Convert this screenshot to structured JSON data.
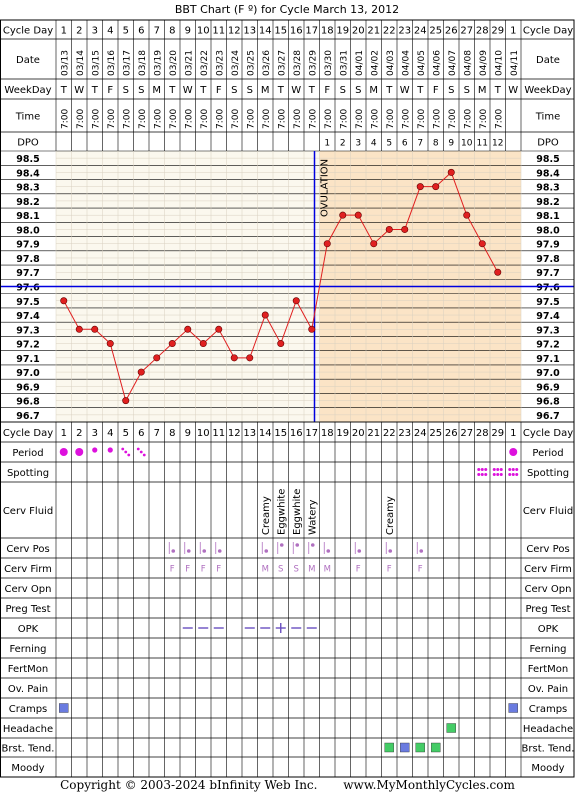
{
  "chart_data": {
    "type": "line",
    "title": "BBT Chart (F º) for Cycle March 13, 2012",
    "cycle_days": [
      "1",
      "2",
      "3",
      "4",
      "5",
      "6",
      "7",
      "8",
      "9",
      "10",
      "11",
      "12",
      "13",
      "14",
      "15",
      "16",
      "17",
      "18",
      "19",
      "20",
      "21",
      "22",
      "23",
      "24",
      "25",
      "26",
      "27",
      "28",
      "29",
      "1"
    ],
    "dates": [
      "03/13",
      "03/14",
      "03/15",
      "03/16",
      "03/17",
      "03/18",
      "03/19",
      "03/20",
      "03/21",
      "03/22",
      "03/23",
      "03/24",
      "03/25",
      "03/26",
      "03/27",
      "03/28",
      "03/29",
      "03/30",
      "03/31",
      "04/01",
      "04/02",
      "04/03",
      "04/04",
      "04/05",
      "04/06",
      "04/07",
      "04/08",
      "04/09",
      "04/10",
      "04/11"
    ],
    "weekdays": [
      "T",
      "W",
      "T",
      "F",
      "S",
      "S",
      "M",
      "T",
      "W",
      "T",
      "F",
      "S",
      "S",
      "M",
      "T",
      "W",
      "T",
      "F",
      "S",
      "S",
      "M",
      "T",
      "W",
      "T",
      "F",
      "S",
      "S",
      "M",
      "T",
      "W"
    ],
    "times": [
      "7:00",
      "7:00",
      "7:00",
      "7:00",
      "7:00",
      "7:00",
      "7:00",
      "7:00",
      "7:00",
      "7:00",
      "7:00",
      "7:00",
      "7:00",
      "7:00",
      "7:00",
      "7:00",
      "7:00",
      "7:00",
      "7:00",
      "7:00",
      "7:00",
      "7:00",
      "7:00",
      "7:00",
      "7:00",
      "7:00",
      "7:00",
      "7:00",
      "7:00",
      ""
    ],
    "dpo": [
      "",
      "",
      "",
      "",
      "",
      "",
      "",
      "",
      "",
      "",
      "",
      "",
      "",
      "",
      "",
      "",
      "",
      "1",
      "2",
      "3",
      "4",
      "5",
      "6",
      "7",
      "8",
      "9",
      "10",
      "11",
      "12",
      ""
    ],
    "temperatures": [
      97.5,
      97.3,
      97.3,
      97.2,
      96.8,
      97.0,
      97.1,
      97.2,
      97.3,
      97.2,
      97.3,
      97.1,
      97.1,
      97.4,
      97.2,
      97.5,
      97.3,
      97.9,
      98.1,
      98.1,
      97.9,
      98.0,
      98.0,
      98.3,
      98.3,
      98.4,
      98.1,
      97.9,
      97.7,
      null
    ],
    "y_ticks": [
      "98.5",
      "98.4",
      "98.3",
      "98.2",
      "98.1",
      "98.0",
      "97.9",
      "97.8",
      "97.7",
      "97.6",
      "97.5",
      "97.4",
      "97.3",
      "97.2",
      "97.1",
      "97.0",
      "96.9",
      "96.8",
      "96.7"
    ],
    "ylim": [
      96.7,
      98.5
    ],
    "coverline": 97.6,
    "ovulation_day_index": 17,
    "ovulation_label": "OVULATION",
    "line_color": "#e02020",
    "coverline_color": "#0000e0",
    "follicular_bg": "#fbf8ee",
    "luteal_bg": "#fbe4c6",
    "row_labels": {
      "cycle_day": "Cycle Day",
      "date": "Date",
      "weekday": "WeekDay",
      "time": "Time",
      "dpo": "DPO",
      "period": "Period",
      "spotting": "Spotting",
      "cerv_fluid": "Cerv Fluid",
      "cerv_pos": "Cerv Pos",
      "cerv_firm": "Cerv Firm",
      "cerv_opn": "Cerv Opn",
      "preg_test": "Preg Test",
      "opk": "OPK",
      "ferning": "Ferning",
      "fertmon": "FertMon",
      "ov_pain": "Ov. Pain",
      "cramps": "Cramps",
      "headache": "Headache",
      "brst_tend": "Brst. Tend.",
      "moody": "Moody"
    },
    "period": [
      3,
      3,
      2,
      2,
      1,
      1,
      0,
      0,
      0,
      0,
      0,
      0,
      0,
      0,
      0,
      0,
      0,
      0,
      0,
      0,
      0,
      0,
      0,
      0,
      0,
      0,
      0,
      0,
      0,
      3
    ],
    "spotting": [
      0,
      0,
      0,
      0,
      0,
      0,
      0,
      0,
      0,
      0,
      0,
      0,
      0,
      0,
      0,
      0,
      0,
      0,
      0,
      0,
      0,
      0,
      0,
      0,
      0,
      0,
      0,
      1,
      1,
      1
    ],
    "cerv_fluid": [
      "",
      "",
      "",
      "",
      "",
      "",
      "",
      "",
      "",
      "",
      "",
      "",
      "",
      "Creamy",
      "Eggwhite",
      "Eggwhite",
      "Watery",
      "",
      "",
      "",
      "",
      "Creamy",
      "",
      "",
      "",
      "",
      "",
      "",
      "",
      ""
    ],
    "cerv_pos": [
      0,
      0,
      0,
      0,
      0,
      0,
      0,
      1,
      1,
      1,
      1,
      0,
      0,
      1,
      2,
      2,
      2,
      1,
      0,
      1,
      0,
      1,
      0,
      1,
      0,
      0,
      0,
      0,
      0,
      0
    ],
    "cerv_firm": [
      "",
      "",
      "",
      "",
      "",
      "",
      "",
      "F",
      "F",
      "F",
      "F",
      "",
      "",
      "M",
      "S",
      "S",
      "M",
      "M",
      "",
      "F",
      "",
      "F",
      "",
      "F",
      "",
      "",
      "",
      "",
      "",
      ""
    ],
    "opk": [
      "",
      "",
      "",
      "",
      "",
      "",
      "",
      "",
      "N",
      "N",
      "N",
      "",
      "N",
      "N",
      "P",
      "N",
      "N",
      "",
      "",
      "",
      "",
      "",
      "",
      "",
      "",
      "",
      "",
      "",
      "",
      ""
    ],
    "cramps": [
      1,
      0,
      0,
      0,
      0,
      0,
      0,
      0,
      0,
      0,
      0,
      0,
      0,
      0,
      0,
      0,
      0,
      0,
      0,
      0,
      0,
      0,
      0,
      0,
      0,
      0,
      0,
      0,
      0,
      1
    ],
    "headache": [
      0,
      0,
      0,
      0,
      0,
      0,
      0,
      0,
      0,
      0,
      0,
      0,
      0,
      0,
      0,
      0,
      0,
      0,
      0,
      0,
      0,
      0,
      0,
      0,
      0,
      1,
      0,
      0,
      0,
      0
    ],
    "brst_tend": [
      0,
      0,
      0,
      0,
      0,
      0,
      0,
      0,
      0,
      0,
      0,
      0,
      0,
      0,
      0,
      0,
      0,
      0,
      0,
      0,
      0,
      1,
      2,
      1,
      1,
      0,
      0,
      0,
      0,
      0
    ],
    "symptom_colors": {
      "cramps": "#6a7be0",
      "headache": "#44cc66",
      "brst_tend_green": "#44cc66",
      "brst_tend_blue": "#6a7be0"
    },
    "period_color": "#dd11dd",
    "cerv_mark_color": "#b070c0"
  },
  "footer": {
    "copyright": "Copyright © 2003-2024 bInfinity Web Inc.",
    "site": "www.MyMonthlyCycles.com"
  }
}
